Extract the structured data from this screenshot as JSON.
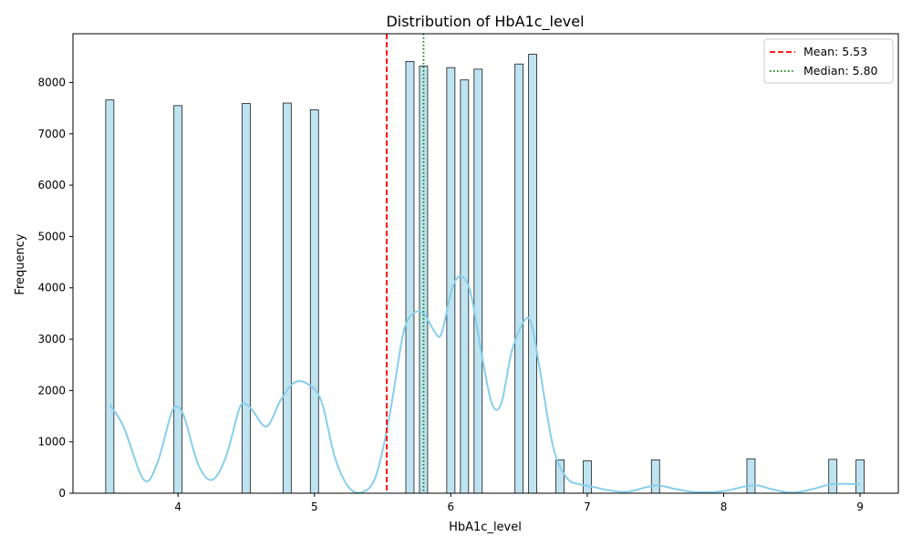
{
  "chart_data": {
    "type": "bar",
    "title": "Distribution of HbA1c_level",
    "xlabel": "HbA1c_level",
    "ylabel": "Frequency",
    "xlim": [
      3.23,
      9.28
    ],
    "ylim": [
      0,
      8950
    ],
    "xticks": [
      4,
      5,
      6,
      7,
      8,
      9
    ],
    "xtick_labels": [
      "4",
      "5",
      "6",
      "7",
      "8",
      "9"
    ],
    "yticks": [
      0,
      1000,
      2000,
      3000,
      4000,
      5000,
      6000,
      7000,
      8000
    ],
    "ytick_labels": [
      "0",
      "1000",
      "2000",
      "3000",
      "4000",
      "5000",
      "6000",
      "7000",
      "8000"
    ],
    "bin_width": 0.06,
    "bars": [
      {
        "x": 3.5,
        "value": 7660
      },
      {
        "x": 4.0,
        "value": 7550
      },
      {
        "x": 4.5,
        "value": 7590
      },
      {
        "x": 4.8,
        "value": 7600
      },
      {
        "x": 5.0,
        "value": 7470
      },
      {
        "x": 5.7,
        "value": 8410
      },
      {
        "x": 5.8,
        "value": 8320
      },
      {
        "x": 6.0,
        "value": 8290
      },
      {
        "x": 6.1,
        "value": 8050
      },
      {
        "x": 6.2,
        "value": 8260
      },
      {
        "x": 6.5,
        "value": 8360
      },
      {
        "x": 6.6,
        "value": 8550
      },
      {
        "x": 6.8,
        "value": 650
      },
      {
        "x": 7.0,
        "value": 630
      },
      {
        "x": 7.5,
        "value": 650
      },
      {
        "x": 8.2,
        "value": 670
      },
      {
        "x": 8.8,
        "value": 660
      },
      {
        "x": 9.0,
        "value": 650
      }
    ],
    "kde": {
      "x": [
        3.5,
        3.6,
        3.75,
        3.85,
        3.95,
        4.0,
        4.05,
        4.15,
        4.25,
        4.35,
        4.45,
        4.5,
        4.55,
        4.65,
        4.75,
        4.85,
        4.95,
        5.05,
        5.15,
        5.25,
        5.35,
        5.45,
        5.55,
        5.65,
        5.72,
        5.8,
        5.88,
        5.93,
        6.0,
        6.05,
        6.1,
        6.15,
        6.22,
        6.3,
        6.37,
        6.45,
        6.55,
        6.6,
        6.65,
        6.75,
        6.85,
        6.95,
        7.05,
        7.15,
        7.3,
        7.5,
        7.65,
        7.8,
        8.0,
        8.15,
        8.25,
        8.35,
        8.5,
        8.65,
        8.8,
        9.0
      ],
      "y": [
        1720,
        1300,
        260,
        600,
        1550,
        1680,
        1450,
        550,
        260,
        700,
        1650,
        1730,
        1600,
        1300,
        1800,
        2150,
        2130,
        1800,
        700,
        120,
        20,
        330,
        1500,
        3100,
        3490,
        3500,
        3150,
        3100,
        3900,
        4200,
        4180,
        3850,
        2800,
        1750,
        1750,
        2800,
        3400,
        3200,
        2450,
        900,
        300,
        170,
        120,
        60,
        30,
        150,
        80,
        20,
        40,
        130,
        150,
        80,
        10,
        80,
        180,
        170
      ]
    },
    "reference_lines": [
      {
        "name": "Mean: 5.53",
        "value": 5.53,
        "color": "#ff0000",
        "style": "dashed"
      },
      {
        "name": "Median: 5.80",
        "value": 5.8,
        "color": "#008000",
        "style": "dotted"
      }
    ],
    "legend_position": "top-right",
    "colors": {
      "bar_fill": "#bfe3f0",
      "bar_edge": "#1a1a1a",
      "kde": "#87ceeb"
    }
  }
}
